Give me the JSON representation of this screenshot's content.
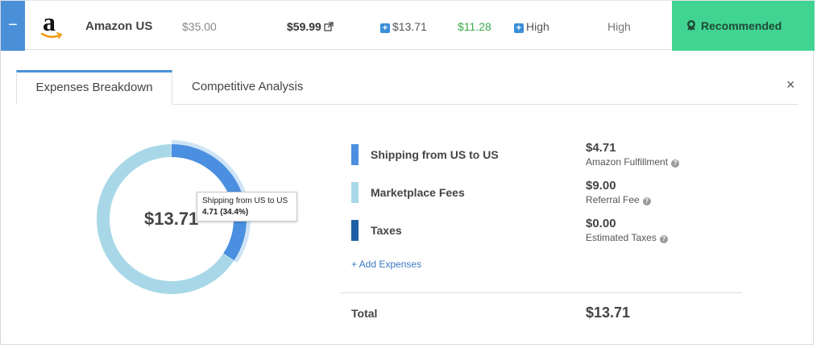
{
  "row": {
    "collapse_label": "−",
    "marketplace": "Amazon US",
    "logo_letter": "a",
    "cost": "$35.00",
    "price": "$59.99",
    "expenses": "$13.71",
    "profit": "$11.28",
    "demand": "High",
    "competition": "High",
    "recommendation": "Recommended",
    "colors": {
      "accent": "#4a90d9",
      "profit": "#3aaa4a",
      "recommended_bg": "#40d392"
    }
  },
  "tabs": [
    {
      "label": "Expenses Breakdown",
      "active": true
    },
    {
      "label": "Competitive Analysis",
      "active": false
    }
  ],
  "close_label": "×",
  "breakdown": {
    "total": "$13.71",
    "items": [
      {
        "label": "Shipping from US to US",
        "amount": "$4.71",
        "sublabel": "Amazon Fulfillment",
        "value": 4.71,
        "color": "#4a8fe0"
      },
      {
        "label": "Marketplace Fees",
        "amount": "$9.00",
        "sublabel": "Referral Fee",
        "value": 9.0,
        "color": "#a8d8e8"
      },
      {
        "label": "Taxes",
        "amount": "$0.00",
        "sublabel": "Estimated Taxes",
        "value": 0.0,
        "color": "#1f5fa8"
      }
    ],
    "add_label": "+ Add Expenses",
    "total_label": "Total",
    "total_value": "$13.71"
  },
  "tooltip": {
    "title": "Shipping from US to US",
    "value": "4.71 (34.4%)"
  }
}
